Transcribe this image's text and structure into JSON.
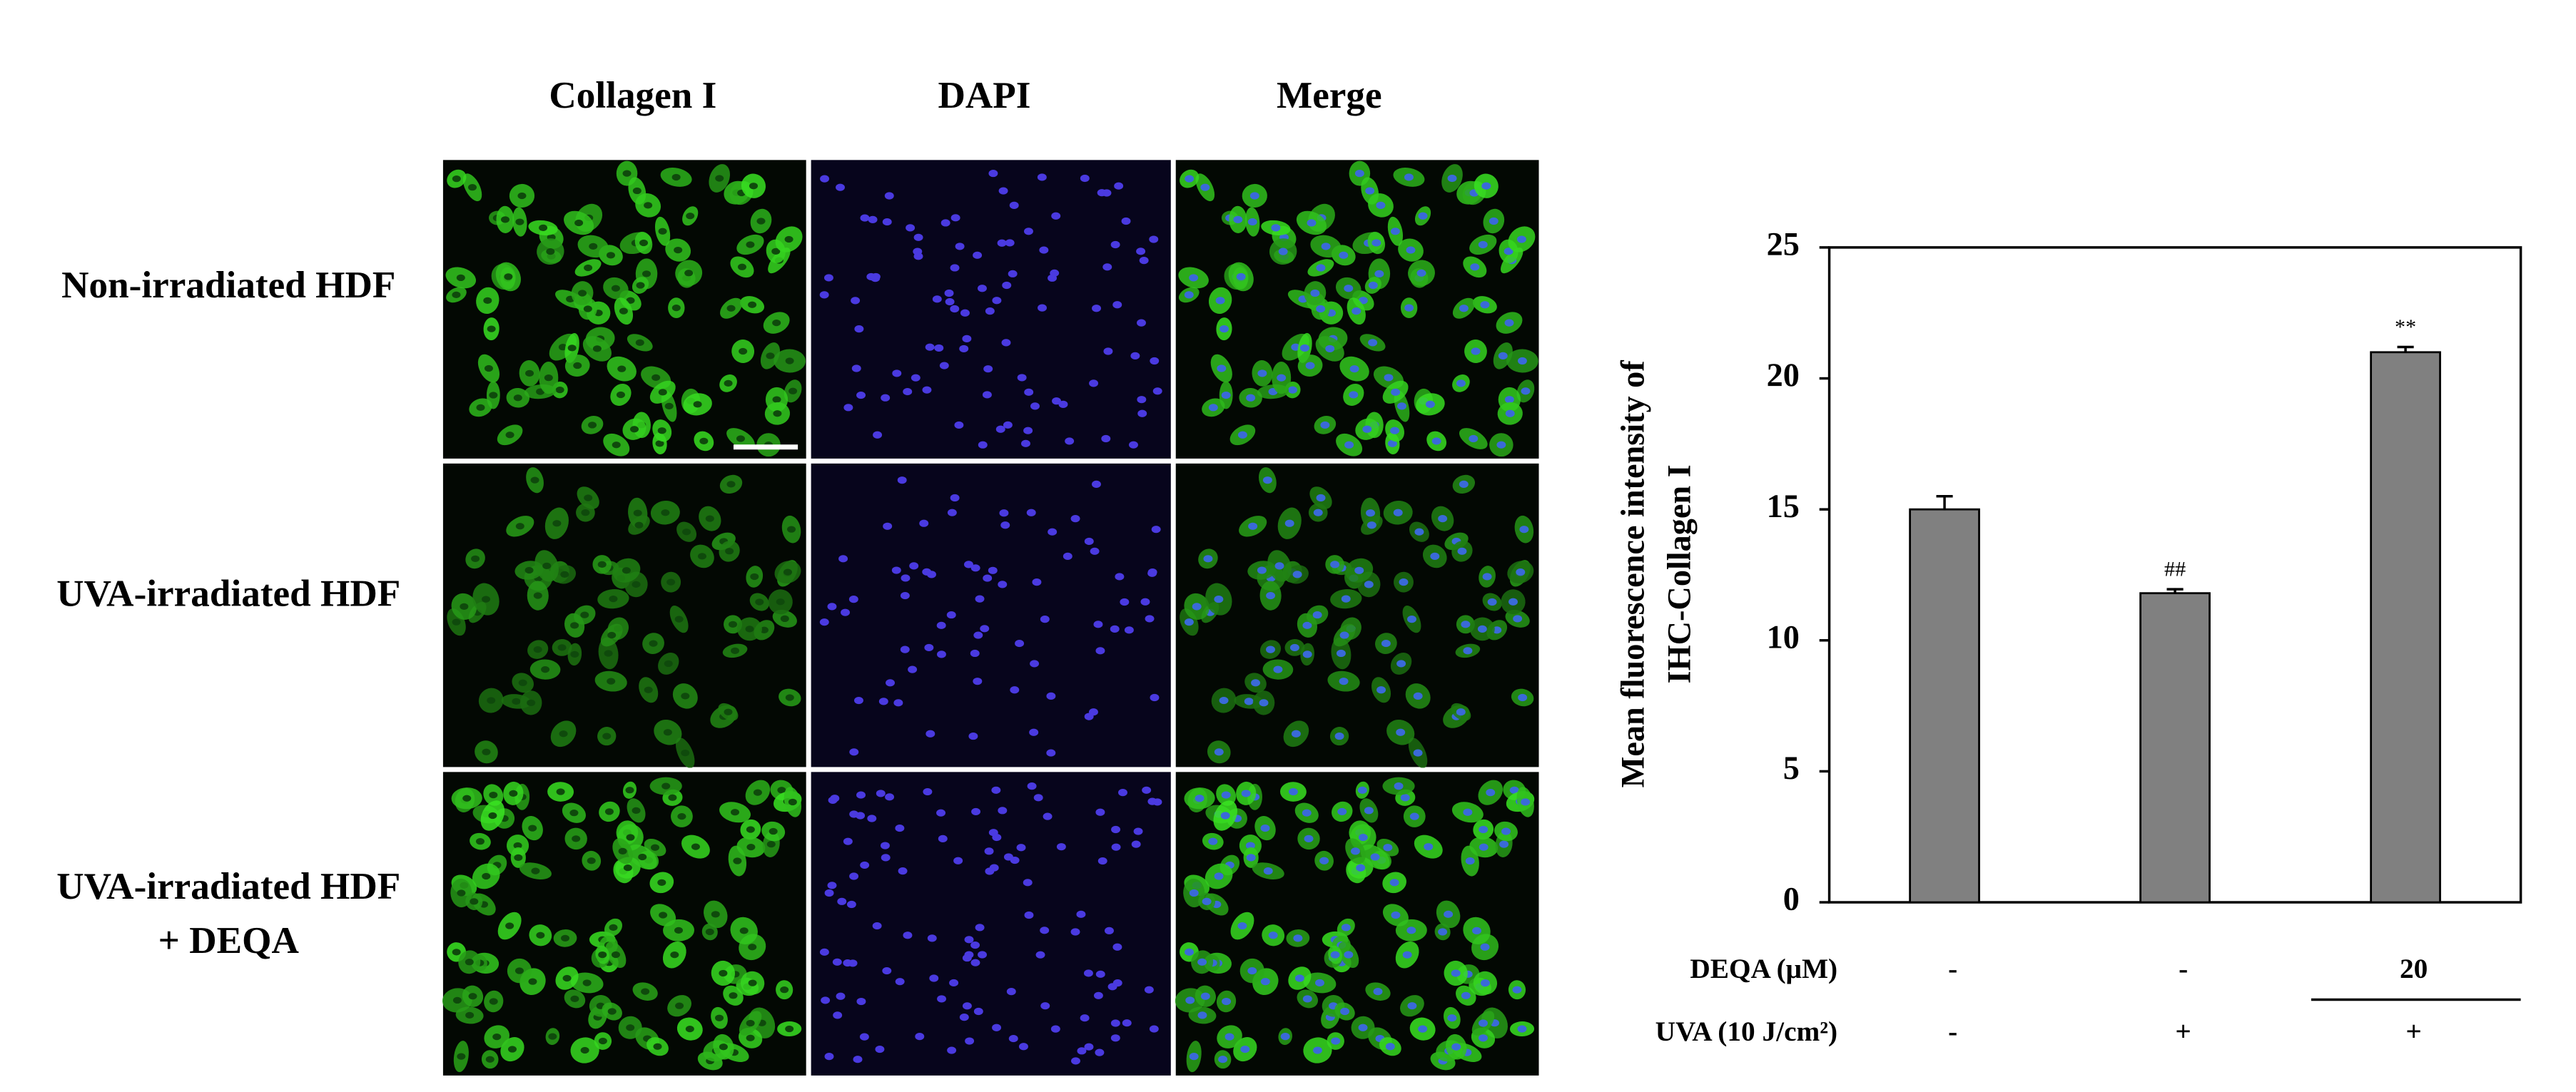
{
  "panel": {
    "columns": [
      "Collagen I",
      "DAPI",
      "Merge"
    ],
    "rows": [
      [
        "Non-irradiated HDF"
      ],
      [
        "UVA-irradiated HDF"
      ],
      [
        "UVA-irradiated HDF",
        "+ DEQA"
      ]
    ]
  },
  "chart_data": {
    "type": "bar",
    "y_label": [
      "Mean fluorescence intensity of",
      "IHC-Collagen I"
    ],
    "categories": [
      null,
      null,
      null
    ],
    "series": [
      {
        "color": "#808080",
        "values": [
          15.0,
          11.8,
          21.0
        ],
        "errors": [
          0.5,
          0.15,
          0.2
        ],
        "annotations": [
          null,
          "##",
          "**"
        ]
      }
    ],
    "treatments": [
      {
        "name": "DEQA  (μM)",
        "labels": [
          "-",
          "-",
          "20"
        ]
      },
      {
        "name": "UVA (10 J/cm²)",
        "labels": [
          "-",
          "+",
          "+"
        ]
      }
    ],
    "ylim": [
      0,
      25
    ],
    "yticks": [
      0,
      5,
      10,
      15,
      20,
      25
    ],
    "grid": false
  }
}
